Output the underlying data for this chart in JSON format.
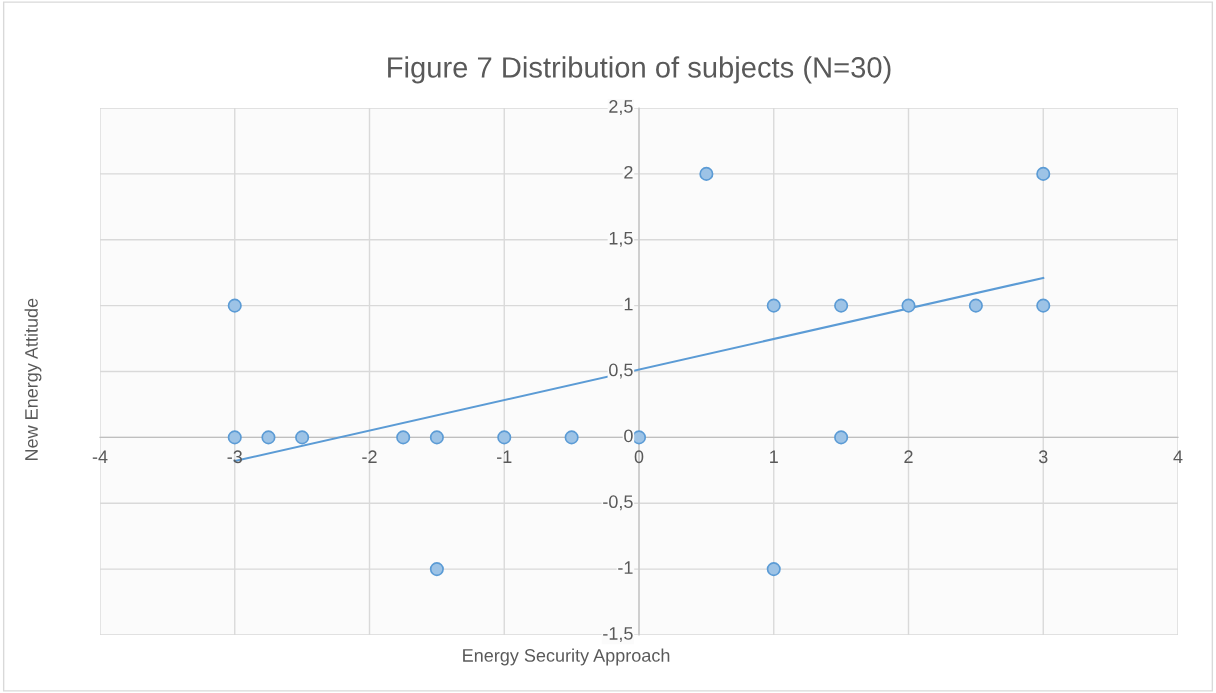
{
  "chart_data": {
    "type": "scatter",
    "title": "Figure 7 Distribution of subjects (N=30)",
    "xlabel": "Energy Security Approach",
    "ylabel": "New Energy Attitude",
    "series": [
      {
        "type": "scatter",
        "marker": "circle",
        "color": "#9dc3e6",
        "x": [
          -3,
          -3,
          -2.75,
          -2.5,
          -1.75,
          -1.5,
          -1,
          -0.5,
          0,
          0.5,
          1,
          1.5,
          2,
          2.5,
          3,
          3,
          1.5,
          -1.5,
          1
        ],
        "values": [
          1,
          0,
          0,
          0,
          0,
          0,
          0,
          0,
          0,
          2,
          1,
          1,
          1,
          1,
          1,
          2,
          0,
          -1,
          -1
        ]
      },
      {
        "type": "line",
        "marker": "none",
        "color": "#5b9bd5",
        "x": [
          -3,
          3
        ],
        "values": [
          -0.18,
          1.21
        ]
      }
    ],
    "xlim": [
      -4,
      4
    ],
    "xticks": [
      -4,
      -3,
      -2,
      -1,
      0,
      1,
      2,
      3,
      4
    ],
    "ylim": [
      -1.5,
      2.5
    ],
    "yticks": [
      {
        "value": -1.5,
        "label": "-1,5"
      },
      -1,
      {
        "value": -0.5,
        "label": "-0,5"
      },
      0,
      {
        "value": 0.5,
        "label": "0,5"
      },
      1,
      {
        "value": 1.5,
        "label": "1,5"
      },
      2,
      {
        "value": 2.5,
        "label": "2,5"
      }
    ],
    "grid": true
  }
}
